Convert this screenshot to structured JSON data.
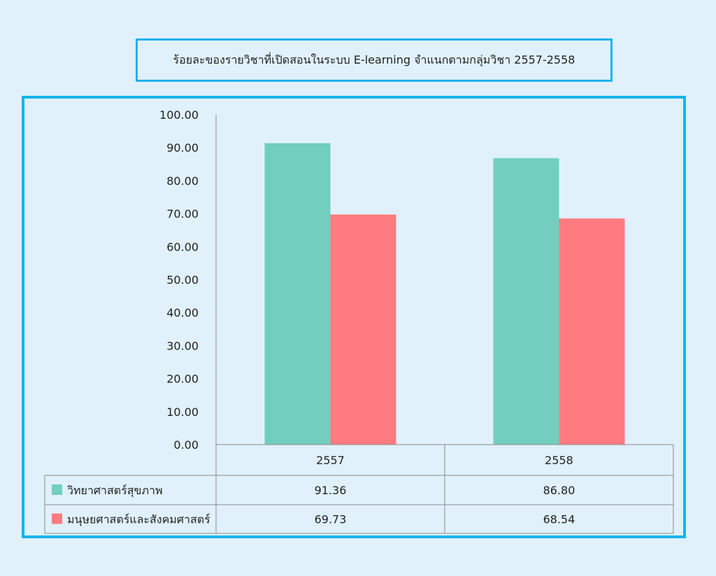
{
  "title": "ร้อยละของรายวิชาที่เปิดสอนในระบบ E-learning   จำแนกตามกลุ่มวิชา 2557-2558",
  "colors": {
    "accent_border": "#16b4ea",
    "background": "#e0f1fb"
  },
  "chart_data": {
    "type": "bar",
    "title": "ร้อยละของรายวิชาที่เปิดสอนในระบบ E-learning   จำแนกตามกลุ่มวิชา 2557-2558",
    "categories": [
      "2557",
      "2558"
    ],
    "series": [
      {
        "name": "วิทยาศาสตร์สุขภาพ",
        "values": [
          91.36,
          86.8
        ],
        "value_labels": [
          "91.36",
          "86.80"
        ],
        "color": "#72cfc0"
      },
      {
        "name": "มนุษยศาสตร์และสังคมศาสตร์",
        "values": [
          69.73,
          68.54
        ],
        "value_labels": [
          "69.73",
          "68.54"
        ],
        "color": "#ff7b80"
      }
    ],
    "ylim": [
      0,
      100
    ],
    "yticks": [
      "0.00",
      "10.00",
      "20.00",
      "30.00",
      "40.00",
      "50.00",
      "60.00",
      "70.00",
      "80.00",
      "90.00",
      "100.00"
    ],
    "xlabel": "",
    "ylabel": "",
    "grid": false,
    "legend": "data-table-left"
  }
}
